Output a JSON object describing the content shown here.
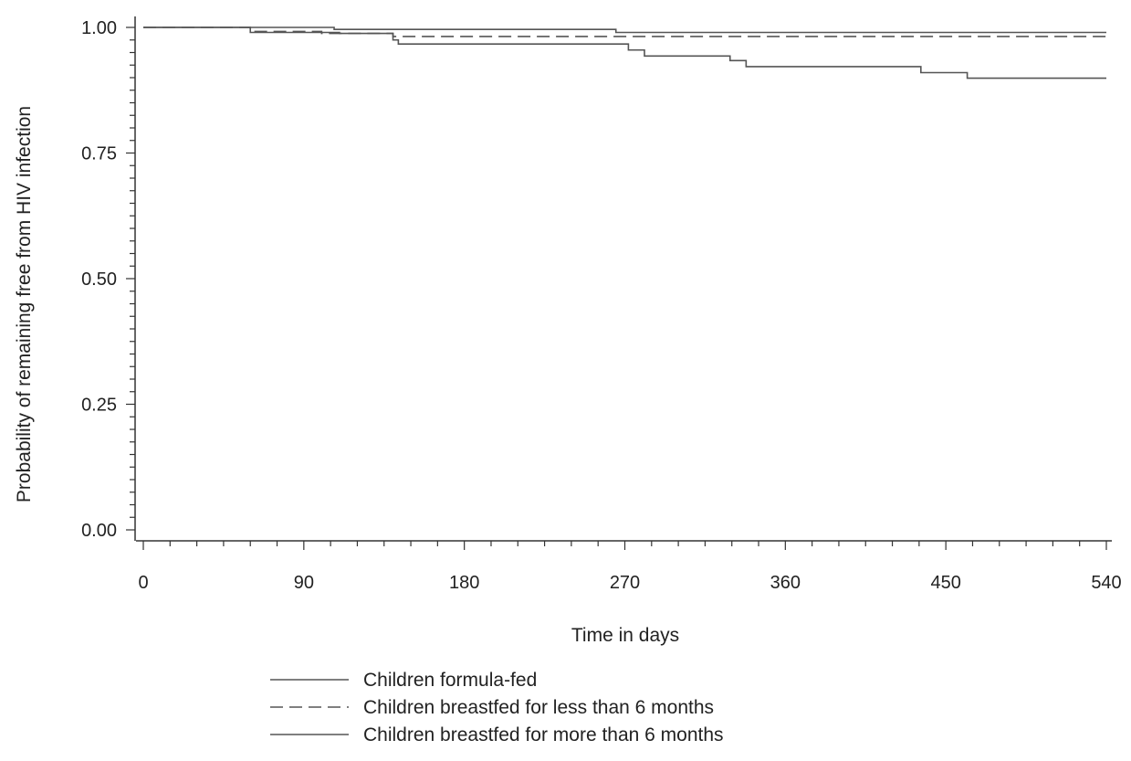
{
  "chart_data": {
    "type": "line",
    "subtype": "kaplan-meier step",
    "title": "",
    "xlabel": "Time in days",
    "ylabel": "Probability of remaining free from HIV infection",
    "xlim": [
      0,
      540
    ],
    "ylim": [
      0,
      1
    ],
    "xticks": [
      0,
      90,
      180,
      270,
      360,
      450,
      540
    ],
    "xtick_labels": [
      "0",
      "90",
      "180",
      "270",
      "360",
      "450",
      "540"
    ],
    "yticks": [
      0,
      0.25,
      0.5,
      0.75,
      1
    ],
    "ytick_labels": [
      "0.00",
      "0.25",
      "0.50",
      "0.75",
      "1.00"
    ],
    "grid": false,
    "legend_position": "bottom-center",
    "line_color": "#555555",
    "series": [
      {
        "name": "Children formula-fed",
        "style": "solid",
        "x": [
          0,
          107,
          265,
          540
        ],
        "y": [
          1.0,
          0.996,
          0.99,
          0.99
        ]
      },
      {
        "name": "Children breastfed for less than 6 months",
        "style": "dashed",
        "x": [
          0,
          60,
          100,
          140,
          540
        ],
        "y": [
          1.0,
          0.992,
          0.988,
          0.982,
          0.982
        ]
      },
      {
        "name": "Children breastfed for more than 6 months",
        "style": "solid",
        "x": [
          0,
          60,
          110,
          140,
          143,
          272,
          281,
          329,
          338,
          436,
          462,
          540
        ],
        "y": [
          1.0,
          0.99,
          0.988,
          0.975,
          0.967,
          0.955,
          0.943,
          0.934,
          0.922,
          0.91,
          0.899,
          0.899
        ]
      }
    ]
  }
}
